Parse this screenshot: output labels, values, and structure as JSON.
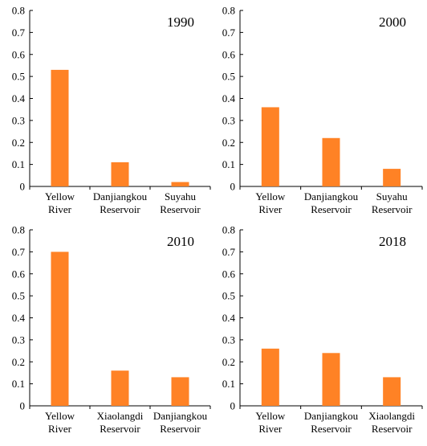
{
  "colors": {
    "bar": "#FF8225",
    "axis": "#000000"
  },
  "chart_data": [
    {
      "type": "bar",
      "title": "1990",
      "categories": [
        [
          "Yellow",
          "River"
        ],
        [
          "Danjiangkou",
          "Reservoir"
        ],
        [
          "Suyahu",
          "Reservoir"
        ]
      ],
      "values": [
        0.53,
        0.11,
        0.02
      ],
      "ylim": [
        0,
        0.8
      ],
      "yticks": [
        "0",
        "0.1",
        "0.2",
        "0.3",
        "0.4",
        "0.5",
        "0.6",
        "0.7",
        "0.8"
      ]
    },
    {
      "type": "bar",
      "title": "2000",
      "categories": [
        [
          "Yellow",
          "River"
        ],
        [
          "Danjiangkou",
          "Reservoir"
        ],
        [
          "Suyahu",
          "Reservoir"
        ]
      ],
      "values": [
        0.36,
        0.22,
        0.08
      ],
      "ylim": [
        0,
        0.8
      ],
      "yticks": [
        "0",
        "0.1",
        "0.2",
        "0.3",
        "0.4",
        "0.5",
        "0.6",
        "0.7",
        "0.8"
      ]
    },
    {
      "type": "bar",
      "title": "2010",
      "categories": [
        [
          "Yellow",
          "River"
        ],
        [
          "Xiaolangdi",
          "Reservoir"
        ],
        [
          "Danjiangkou",
          "Reservoir"
        ]
      ],
      "values": [
        0.7,
        0.16,
        0.13
      ],
      "ylim": [
        0,
        0.8
      ],
      "yticks": [
        "0",
        "0.1",
        "0.2",
        "0.3",
        "0.4",
        "0.5",
        "0.6",
        "0.7",
        "0.8"
      ]
    },
    {
      "type": "bar",
      "title": "2018",
      "categories": [
        [
          "Yellow",
          "River"
        ],
        [
          "Danjiangkou",
          "Reservoir"
        ],
        [
          "Xiaolangdi",
          "Reservoir"
        ]
      ],
      "values": [
        0.26,
        0.24,
        0.13
      ],
      "ylim": [
        0,
        0.8
      ],
      "yticks": [
        "0",
        "0.1",
        "0.2",
        "0.3",
        "0.4",
        "0.5",
        "0.6",
        "0.7",
        "0.8"
      ]
    }
  ]
}
